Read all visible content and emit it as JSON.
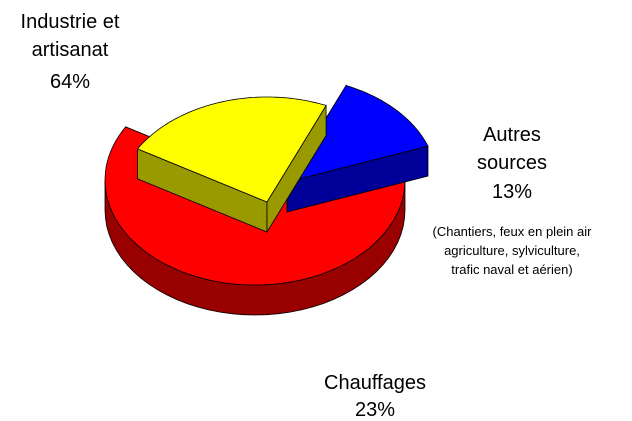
{
  "chart_data": {
    "type": "pie",
    "categories": [
      "Industrie et artisanat",
      "Chauffages",
      "Autres sources"
    ],
    "values": [
      64,
      23,
      13
    ],
    "value_labels": [
      "64%",
      "23%",
      "13%"
    ],
    "colors": [
      "#ff0000",
      "#ffff00",
      "#0000ff"
    ],
    "annotation": [
      "(Chantiers, feux en plein air",
      "agriculture, sylviculture,",
      "trafic naval et aérien)"
    ]
  }
}
